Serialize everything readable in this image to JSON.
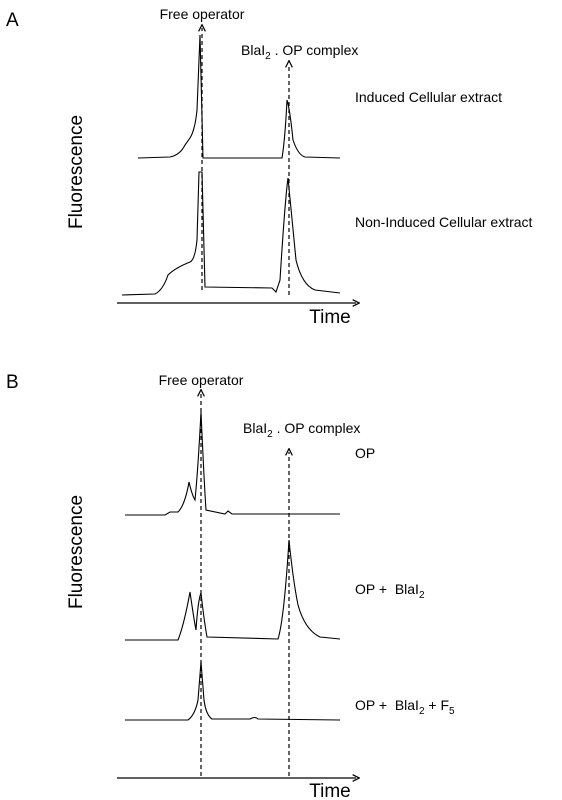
{
  "panels": [
    {
      "label": "A",
      "y_axis_label": "Fluorescence",
      "x_axis_label": "Time",
      "peak_labels": [
        [
          "Free operator"
        ],
        [
          "BlaI",
          "2",
          " . OP complex"
        ]
      ],
      "trace_labels": [
        [
          "Induced Cellular extract"
        ],
        [
          "Non-Induced Cellular extract"
        ]
      ]
    },
    {
      "label": "B",
      "y_axis_label": "Fluorescence",
      "x_axis_label": "Time",
      "peak_labels": [
        [
          "Free operator"
        ],
        [
          "BlaI",
          "2",
          " . OP complex"
        ]
      ],
      "trace_labels": [
        [
          "OP"
        ],
        [
          "OP +  BlaI",
          "2"
        ],
        [
          "OP +  BlaI",
          "2",
          " + F",
          "5"
        ]
      ]
    }
  ]
}
